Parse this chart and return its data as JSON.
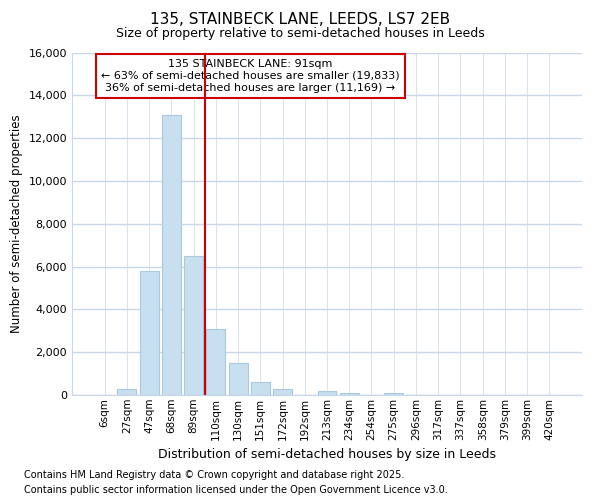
{
  "title_line1": "135, STAINBECK LANE, LEEDS, LS7 2EB",
  "title_line2": "Size of property relative to semi-detached houses in Leeds",
  "xlabel": "Distribution of semi-detached houses by size in Leeds",
  "ylabel": "Number of semi-detached properties",
  "categories": [
    "6sqm",
    "27sqm",
    "47sqm",
    "68sqm",
    "89sqm",
    "110sqm",
    "130sqm",
    "151sqm",
    "172sqm",
    "192sqm",
    "213sqm",
    "234sqm",
    "254sqm",
    "275sqm",
    "296sqm",
    "317sqm",
    "337sqm",
    "358sqm",
    "379sqm",
    "399sqm",
    "420sqm"
  ],
  "values": [
    0,
    300,
    5800,
    13100,
    6500,
    3100,
    1500,
    600,
    300,
    0,
    200,
    100,
    0,
    100,
    0,
    0,
    0,
    0,
    0,
    0,
    0
  ],
  "bar_color": "#c8dff0",
  "bar_edge_color": "#aac8e0",
  "vline_x_index": 4.5,
  "property_label": "135 STAINBECK LANE: 91sqm",
  "pct_smaller": 63,
  "n_smaller": 19833,
  "pct_larger": 36,
  "n_larger": 11169,
  "annotation_box_color": "#cc0000",
  "vline_color": "#cc0000",
  "ylim": [
    0,
    16000
  ],
  "yticks": [
    0,
    2000,
    4000,
    6000,
    8000,
    10000,
    12000,
    14000,
    16000
  ],
  "footnote1": "Contains HM Land Registry data © Crown copyright and database right 2025.",
  "footnote2": "Contains public sector information licensed under the Open Government Licence v3.0.",
  "bg_color": "#ffffff",
  "plot_bg_color": "#ffffff",
  "grid_color": "#c8d8e8",
  "title_fontsize": 11,
  "subtitle_fontsize": 9
}
